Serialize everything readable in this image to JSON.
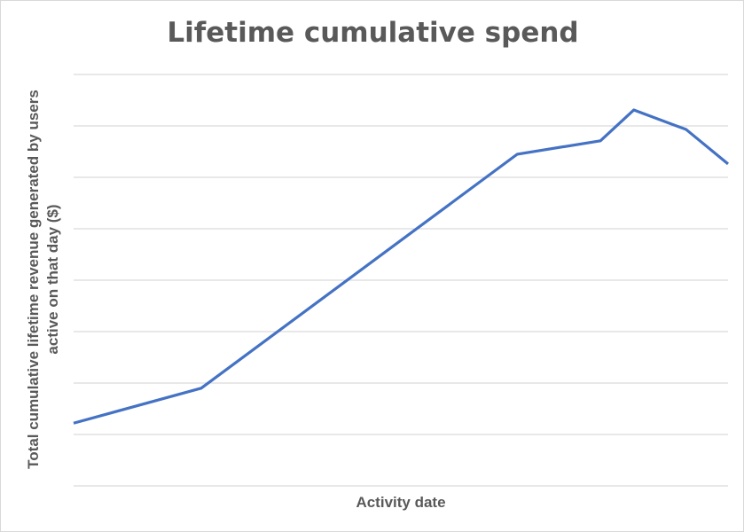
{
  "chart_data": {
    "type": "line",
    "title": "Lifetime cumulative spend",
    "xlabel": "Activity date",
    "ylabel": "Total cumulative lifetime revenue generated by users active on that day ($)",
    "x_tick_labels": [],
    "y_tick_labels": [],
    "grid": true,
    "gridline_count": 9,
    "ylim": [
      0,
      8
    ],
    "xlim": [
      0,
      100
    ],
    "series": [
      {
        "color": "#4472c4",
        "x": [
          0,
          19.5,
          67.8,
          80.5,
          85.6,
          93.6,
          100
        ],
        "y": [
          1.22,
          1.9,
          6.45,
          6.71,
          7.31,
          6.93,
          6.26
        ]
      }
    ]
  }
}
